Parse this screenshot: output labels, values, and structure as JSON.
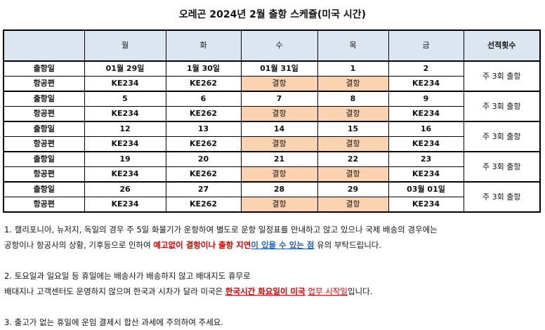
{
  "title": "오레곤 2024년 2월 출항 스케쥴(미국 시간)",
  "header": [
    "월",
    "화",
    "수",
    "목",
    "금",
    "선적횟수"
  ],
  "rows": [
    {
      "dep_label": "출항일",
      "dates": [
        "01월 29일",
        "1월 30일",
        "01월 31일",
        "1",
        "2"
      ],
      "flight_label": "항공편",
      "flights": [
        "KE234",
        "KE262",
        "결항",
        "결항",
        "KE234"
      ],
      "count": "주 3회 출항"
    },
    {
      "dep_label": "출항일",
      "dates": [
        "5",
        "6",
        "7",
        "8",
        "9"
      ],
      "flight_label": "항공편",
      "flights": [
        "KE234",
        "KE262",
        "결항",
        "결항",
        "KE234"
      ],
      "count": "주 3회 출항"
    },
    {
      "dep_label": "출항일",
      "dates": [
        "12",
        "13",
        "14",
        "15",
        "16"
      ],
      "flight_label": "항공편",
      "flights": [
        "KE234",
        "KE262",
        "결항",
        "결항",
        "KE234"
      ],
      "count": "주 3회 출항"
    },
    {
      "dep_label": "출항일",
      "dates": [
        "19",
        "20",
        "21",
        "22",
        "23"
      ],
      "flight_label": "항공편",
      "flights": [
        "KE234",
        "KE262",
        "결항",
        "결항",
        "KE234"
      ],
      "count": "주 3회 출항"
    },
    {
      "dep_label": "출항일",
      "dates": [
        "26",
        "27",
        "28",
        "29",
        "03월 01일"
      ],
      "flight_label": "항공편",
      "flights": [
        "KE234",
        "KE262",
        "결항",
        "결항",
        "KE234"
      ],
      "count": "주 3회 출항"
    }
  ],
  "colors": {
    "header_bg": "#dce6f1",
    "cancel_bg": "#fbd3b0",
    "emphasis_red": "#e00000",
    "emphasis_blue": "#1f5fbf"
  },
  "notes": {
    "n1_line1": "1. 캘리포니아, 뉴저지, 독일의 경우 주 5일 화물기가 운항하여 별도로 운항 일정표를 안내하고 않고 있으나 국제 배송의 경우에는",
    "n1_line2_a": "공항이나 항공사의 상황, 기후등으로 인하여 ",
    "n1_line2_red": "예고없이 결항이나 출항 지연",
    "n1_line2_blue": "이 있을 수 있는 점",
    "n1_line2_b": " 유의 부탁드립니다.",
    "n2_line1": "2. 토요일과 일요일 등 휴일에는 배송사가 배송하지 않고 배대지도 휴무로",
    "n2_line2_a": "배대지나 고객센터도 운영하지 않으며 한국과 시차가 달라 미국은 ",
    "n2_line2_red": "한국시간 화요일이 미국",
    "n2_line2_b": " ",
    "n2_line2_red2": "업무 시작일",
    "n2_line2_c": "입니다.",
    "n3": "3. 출고가 없는 휴일에 운임 결제시 합산 과세에 주의하여 주세요."
  }
}
